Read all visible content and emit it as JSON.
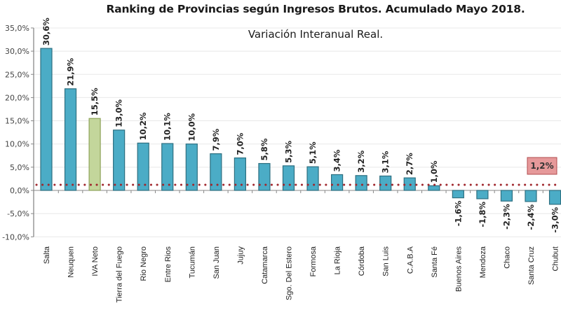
{
  "chart_data": {
    "type": "bar",
    "title": "Ranking de Provincias según Ingresos Brutos. Acumulado Mayo 2018.",
    "subtitle": "Variación Interanual Real.",
    "xlabel": "",
    "ylabel": "",
    "ylim": [
      -10,
      35
    ],
    "ytick_step": 5,
    "yticks": [
      "-10,0%",
      "-5,0%",
      "0,0%",
      "5,0%",
      "10,0%",
      "15,0%",
      "20,0%",
      "25,0%",
      "30,0%",
      "35,0%"
    ],
    "grid": true,
    "legend": null,
    "categories": [
      "Salta",
      "Neuquen",
      "IVA Neto",
      "Tierra del Fuego",
      "Rio Negro",
      "Entre Rios",
      "Tucumán",
      "San Juan",
      "Jujuy",
      "Catamarca",
      "Sgo. Del Estero",
      "Formosa",
      "La Rioja",
      "Córdoba",
      "San Luis",
      "C.A.B.A",
      "Santa Fé",
      "Buenos Aires",
      "Mendoza",
      "Chaco",
      "Santa Cruz",
      "Chubut"
    ],
    "values": [
      30.6,
      21.9,
      15.5,
      13.0,
      10.2,
      10.1,
      10.0,
      7.9,
      7.0,
      5.8,
      5.3,
      5.1,
      3.4,
      3.2,
      3.1,
      2.7,
      1.0,
      -1.6,
      -1.8,
      -2.3,
      -2.4,
      -3.0
    ],
    "value_labels": [
      "30,6%",
      "21,9%",
      "15,5%",
      "13,0%",
      "10,2%",
      "10,1%",
      "10,0%",
      "7,9%",
      "7,0%",
      "5,8%",
      "5,3%",
      "5,1%",
      "3,4%",
      "3,2%",
      "3,1%",
      "2,7%",
      "1,0%",
      "-1,6%",
      "-1,8%",
      "-2,3%",
      "-2,4%",
      "-3,0%"
    ],
    "highlight_category": "IVA Neto",
    "reference_line": {
      "value": 1.2,
      "label": "1,2%",
      "style": "dotted"
    },
    "colors": {
      "bar": "#4bacc6",
      "bar_border": "#2d6f80",
      "highlight_bar": "#c3d69b",
      "highlight_border": "#8ea35a",
      "reference_line": "#a0272d",
      "reference_box": "#e6999a",
      "reference_box_border": "#b24c4f",
      "gridline": "#e8e8e8",
      "axis": "#888888"
    }
  }
}
